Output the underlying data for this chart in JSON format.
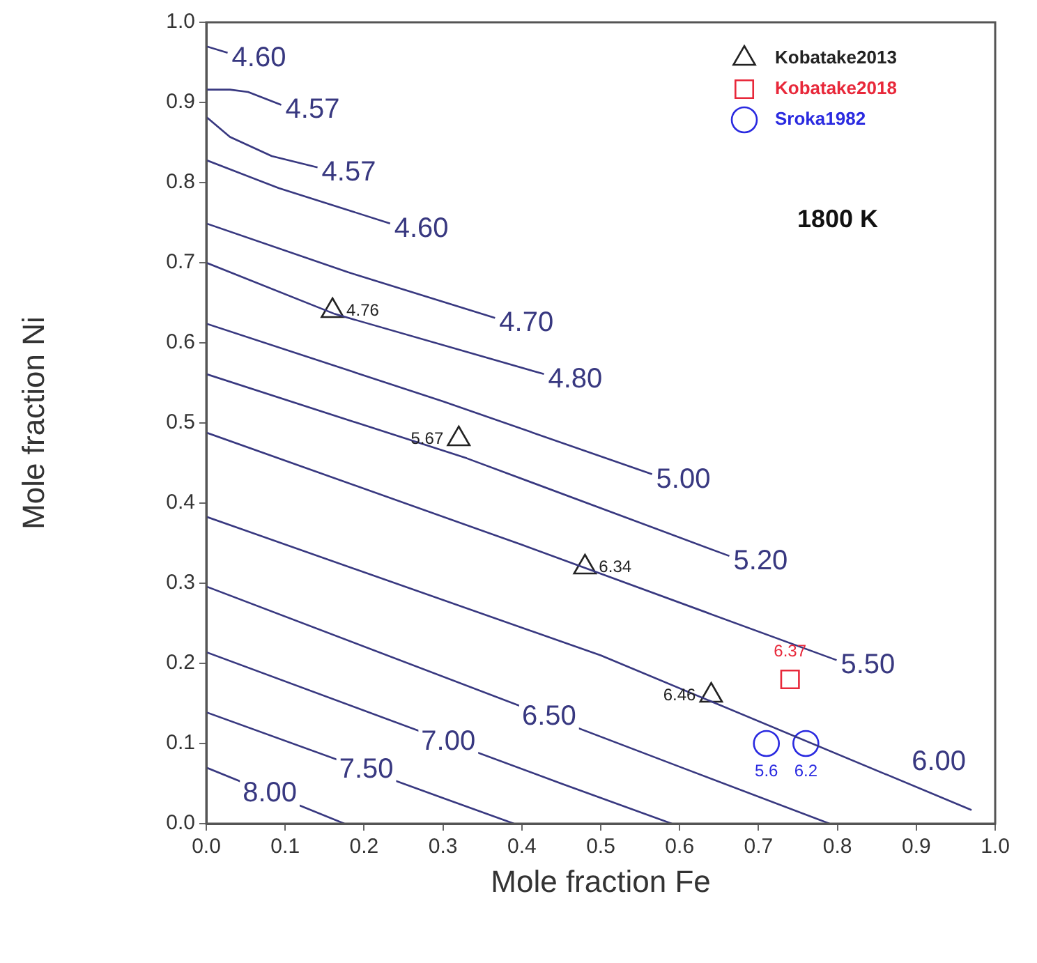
{
  "chart_data": {
    "type": "scatter",
    "xlabel": "Mole fraction Fe",
    "ylabel": "Mole fraction Ni",
    "xlim": [
      0,
      1
    ],
    "ylim": [
      0,
      1
    ],
    "xticks": [
      {
        "value": 0,
        "label": "0.0"
      },
      {
        "value": 0.1,
        "label": "0.1"
      },
      {
        "value": 0.2,
        "label": "0.2"
      },
      {
        "value": 0.3,
        "label": "0.3"
      },
      {
        "value": 0.4,
        "label": "0.4"
      },
      {
        "value": 0.5,
        "label": "0.5"
      },
      {
        "value": 0.6,
        "label": "0.6"
      },
      {
        "value": 0.7,
        "label": "0.7"
      },
      {
        "value": 0.8,
        "label": "0.8"
      },
      {
        "value": 0.9,
        "label": "0.9"
      },
      {
        "value": 1,
        "label": "1.0"
      }
    ],
    "yticks": [
      {
        "value": 0,
        "label": "0.0"
      },
      {
        "value": 0.1,
        "label": "0.1"
      },
      {
        "value": 0.2,
        "label": "0.2"
      },
      {
        "value": 0.3,
        "label": "0.3"
      },
      {
        "value": 0.4,
        "label": "0.4"
      },
      {
        "value": 0.5,
        "label": "0.5"
      },
      {
        "value": 0.6,
        "label": "0.6"
      },
      {
        "value": 0.7,
        "label": "0.7"
      },
      {
        "value": 0.8,
        "label": "0.8"
      },
      {
        "value": 0.9,
        "label": "0.9"
      },
      {
        "value": 1,
        "label": "1.0"
      }
    ],
    "grid": false,
    "legend": "top right",
    "series": [
      {
        "type": "line",
        "name": "4.60",
        "color": "#383880",
        "marker": "none",
        "x": [
          0,
          0.027
        ],
        "values": [
          0.97,
          0.962
        ]
      },
      {
        "type": "line",
        "name": "4.57",
        "color": "#383880",
        "marker": "none",
        "x": [
          0,
          0.03,
          0.053,
          0.095
        ],
        "values": [
          0.916,
          0.916,
          0.913,
          0.897
        ]
      },
      {
        "type": "line",
        "name": "4.57",
        "color": "#383880",
        "marker": "none",
        "x": [
          0,
          0.03,
          0.083,
          0.141
        ],
        "values": [
          0.882,
          0.857,
          0.833,
          0.819
        ]
      },
      {
        "type": "line",
        "name": "4.60",
        "color": "#383880",
        "marker": "none",
        "x": [
          0,
          0.092,
          0.233
        ],
        "values": [
          0.828,
          0.793,
          0.749
        ]
      },
      {
        "type": "line",
        "name": "4.70",
        "color": "#383880",
        "marker": "none",
        "x": [
          0,
          0.18,
          0.366
        ],
        "values": [
          0.749,
          0.688,
          0.631
        ]
      },
      {
        "type": "line",
        "name": "4.80",
        "color": "#383880",
        "marker": "none",
        "x": [
          0,
          0.163,
          0.428
        ],
        "values": [
          0.7,
          0.636,
          0.561
        ]
      },
      {
        "type": "line",
        "name": "5.00",
        "color": "#383880",
        "marker": "none",
        "x": [
          0,
          0.3,
          0.565
        ],
        "values": [
          0.624,
          0.527,
          0.436
        ]
      },
      {
        "type": "line",
        "name": "5.20",
        "color": "#383880",
        "marker": "none",
        "x": [
          0,
          0.33,
          0.663
        ],
        "values": [
          0.561,
          0.456,
          0.334
        ]
      },
      {
        "type": "line",
        "name": "5.50",
        "color": "#383880",
        "marker": "none",
        "x": [
          0,
          0.4,
          0.799
        ],
        "values": [
          0.488,
          0.348,
          0.204
        ]
      },
      {
        "type": "line",
        "name": "6.00",
        "color": "#383880",
        "marker": "none",
        "x": [
          0,
          0.5,
          0.97
        ],
        "values": [
          0.383,
          0.21,
          0.017
        ]
      },
      {
        "type": "line",
        "name": "6.50",
        "color": "#383880",
        "marker": "none",
        "x": [
          0,
          0.6,
          0.79
        ],
        "values": [
          0.296,
          0.071,
          0
        ]
      },
      {
        "type": "line",
        "name": "7.00",
        "color": "#383880",
        "marker": "none",
        "x": [
          0,
          0.45,
          0.59
        ],
        "values": [
          0.214,
          0.05,
          0
        ]
      },
      {
        "type": "line",
        "name": "7.50",
        "color": "#383880",
        "marker": "none",
        "x": [
          0,
          0.3,
          0.39
        ],
        "values": [
          0.139,
          0.032,
          0
        ]
      },
      {
        "type": "line",
        "name": "8.00",
        "color": "#383880",
        "marker": "none",
        "x": [
          0,
          0.175
        ],
        "values": [
          0.07,
          0
        ]
      },
      {
        "type": "scatter",
        "name": "Kobatake2013",
        "color": "#222222",
        "marker": "triangle",
        "x": [
          0.16,
          0.32,
          0.48,
          0.64
        ],
        "values": [
          0.64,
          0.48,
          0.32,
          0.16
        ]
      },
      {
        "type": "scatter",
        "name": "Kobatake2018",
        "color": "#e8283a",
        "marker": "square",
        "x": [
          0.74
        ],
        "values": [
          0.18
        ]
      },
      {
        "type": "scatter",
        "name": "Sroka1982",
        "color": "#2a2ae0",
        "marker": "circle",
        "x": [
          0.71,
          0.76
        ],
        "values": [
          0.1,
          0.1
        ]
      }
    ],
    "annotations": [
      {
        "text": "4.76",
        "x": 0.16,
        "y": 0.64
      },
      {
        "text": "5.67",
        "x": 0.32,
        "y": 0.48
      },
      {
        "text": "6.34",
        "x": 0.48,
        "y": 0.32
      },
      {
        "text": "6.46",
        "x": 0.64,
        "y": 0.16
      },
      {
        "text": "6.37",
        "x": 0.74,
        "y": 0.18
      },
      {
        "text": "5.6",
        "x": 0.71,
        "y": 0.1
      },
      {
        "text": "6.2",
        "x": 0.76,
        "y": 0.1
      },
      "1800 K"
    ]
  }
}
